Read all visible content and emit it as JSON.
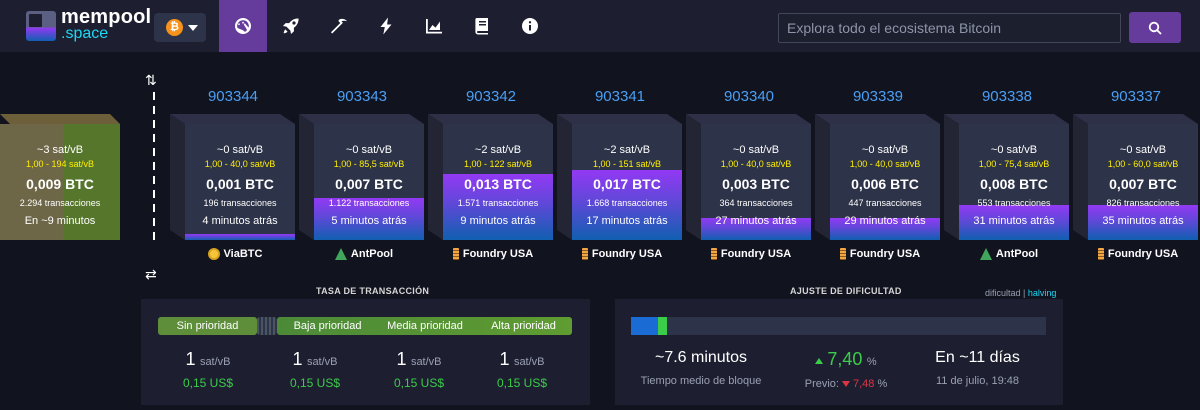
{
  "brand": {
    "name": "mempool",
    "sub": ".space"
  },
  "network": {
    "symbol": "₿"
  },
  "nav": [
    {
      "name": "dashboard-icon",
      "active": true
    },
    {
      "name": "rocket-icon",
      "active": false
    },
    {
      "name": "pickaxe-icon",
      "active": false
    },
    {
      "name": "lightning-icon",
      "active": false
    },
    {
      "name": "chart-area-icon",
      "active": false
    },
    {
      "name": "book-icon",
      "active": false
    },
    {
      "name": "info-icon",
      "active": false
    }
  ],
  "search": {
    "placeholder": "Explora todo el ecosistema Bitcoin"
  },
  "mempool_block": {
    "median": "~3 sat/vB",
    "range": "1,00 - 194 sat/vB",
    "size": "0,009 BTC",
    "tx": "2.294 transacciones",
    "eta": "En ~9 minutos"
  },
  "blocks": [
    {
      "height": "903344",
      "median": "~0 sat/vB",
      "range": "1,00 - 40,0 sat/vB",
      "size": "0,001 BTC",
      "tx": "196 transacciones",
      "time": "4 minutos atrás",
      "miner": "ViaBTC",
      "miner_icon": "viabtc",
      "fullness": 0.05
    },
    {
      "height": "903343",
      "median": "~0 sat/vB",
      "range": "1,00 - 85,5 sat/vB",
      "size": "0,007 BTC",
      "tx": "1.122 transacciones",
      "time": "5 minutos atrás",
      "miner": "AntPool",
      "miner_icon": "antpool",
      "fullness": 0.36
    },
    {
      "height": "903342",
      "median": "~2 sat/vB",
      "range": "1,00 - 122 sat/vB",
      "size": "0,013 BTC",
      "tx": "1.571 transacciones",
      "time": "9 minutos atrás",
      "miner": "Foundry USA",
      "miner_icon": "foundry",
      "fullness": 0.57
    },
    {
      "height": "903341",
      "median": "~2 sat/vB",
      "range": "1,00 - 151 sat/vB",
      "size": "0,017 BTC",
      "tx": "1.668 transacciones",
      "time": "17 minutos atrás",
      "miner": "Foundry USA",
      "miner_icon": "foundry",
      "fullness": 0.6
    },
    {
      "height": "903340",
      "median": "~0 sat/vB",
      "range": "1,00 - 40,0 sat/vB",
      "size": "0,003 BTC",
      "tx": "364 transacciones",
      "time": "27 minutos atrás",
      "miner": "Foundry USA",
      "miner_icon": "foundry",
      "fullness": 0.19
    },
    {
      "height": "903339",
      "median": "~0 sat/vB",
      "range": "1,00 - 40,0 sat/vB",
      "size": "0,006 BTC",
      "tx": "447 transacciones",
      "time": "29 minutos atrás",
      "miner": "Foundry USA",
      "miner_icon": "foundry",
      "fullness": 0.19
    },
    {
      "height": "903338",
      "median": "~0 sat/vB",
      "range": "1,00 - 75,4 sat/vB",
      "size": "0,008 BTC",
      "tx": "553 transacciones",
      "time": "31 minutos atrás",
      "miner": "AntPool",
      "miner_icon": "antpool",
      "fullness": 0.3
    },
    {
      "height": "903337",
      "median": "~0 sat/vB",
      "range": "1,00 - 60,0 sat/vB",
      "size": "0,007 BTC",
      "tx": "826 transacciones",
      "time": "35 minutos atrás",
      "miner": "Foundry USA",
      "miner_icon": "foundry",
      "fullness": 0.3
    }
  ],
  "fees": {
    "title": "TASA DE TRANSACCIÓN",
    "labels": [
      "Sin prioridad",
      "Baja prioridad",
      "Media prioridad",
      "Alta prioridad"
    ],
    "values": [
      {
        "num": "1",
        "unit": "sat/vB",
        "usd": "0,15 US$"
      },
      {
        "num": "1",
        "unit": "sat/vB",
        "usd": "0,15 US$"
      },
      {
        "num": "1",
        "unit": "sat/vB",
        "usd": "0,15 US$"
      },
      {
        "num": "1",
        "unit": "sat/vB",
        "usd": "0,15 US$"
      }
    ]
  },
  "difficulty": {
    "title": "AJUSTE DE DIFICULTAD",
    "link_diff": "dificultad",
    "link_sep": "|",
    "link_halving": "halving",
    "progress_done": 0.064,
    "progress_current": 0.022,
    "avg_block_time": "~7.6 minutos",
    "avg_block_time_label": "Tiempo medio de bloque",
    "change": "7,40",
    "change_unit": "%",
    "prev_label": "Previo:",
    "prev_value": "7,48",
    "prev_unit": "%",
    "eta": "En ~11 días",
    "eta_date": "11 de julio, 19:48"
  },
  "colors": {
    "accent": "#653b9c",
    "link": "#4a9ff5",
    "green": "#3bcc49",
    "red": "#dc3545"
  }
}
